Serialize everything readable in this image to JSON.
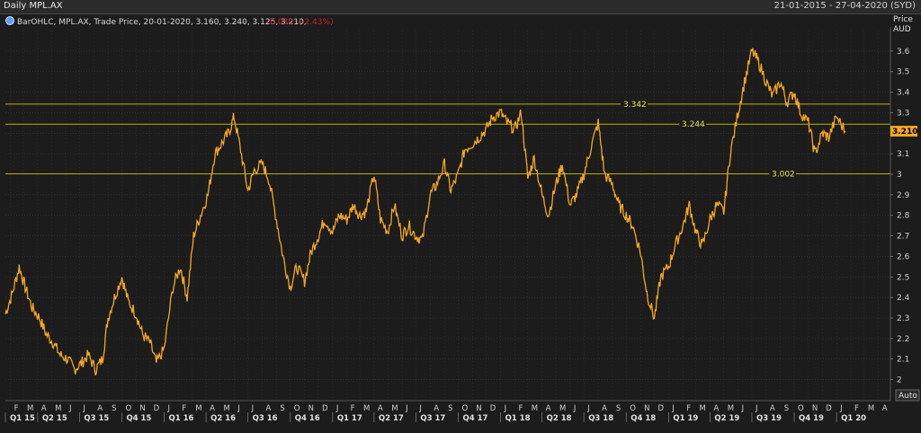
{
  "window": {
    "title": "Daily MPL.AX",
    "date_range": "21-01-2015 - 27-04-2020 (SYD)"
  },
  "legend": {
    "text": "BarOHLC, MPL.AX, Trade Price, 20-01-2020, 3.160, 3.240, 3.125, 3.210,",
    "change": "-0.080, (-2.43%)",
    "change_color": "#cc2222"
  },
  "colors": {
    "background": "#1c1c1c",
    "price_line": "#f5a623",
    "level_line": "#b5b200",
    "grid": "#3a3a3a"
  },
  "axis": {
    "unit_label": "Price",
    "currency_label": "AUD",
    "auto_button": "Auto"
  },
  "chart_data": {
    "type": "line",
    "ylim": [
      1.95,
      3.7
    ],
    "yticks": [
      2,
      2.1,
      2.2,
      2.3,
      2.4,
      2.5,
      2.6,
      2.7,
      2.8,
      2.9,
      3,
      3.1,
      3.2,
      3.3,
      3.4,
      3.5,
      3.6
    ],
    "ytick_labels": [
      "2",
      "2.1",
      "2.2",
      "2.3",
      "2.4",
      "2.5",
      "2.6",
      "2.7",
      "2.8",
      "2.9",
      "3",
      "3.1",
      "3.2",
      "3.3",
      "3.4",
      "3.5",
      "3.6"
    ],
    "xlim": [
      "2015-01-21",
      "2020-04-27"
    ],
    "month_labels": [
      "F",
      "M",
      "A",
      "M",
      "J",
      "J",
      "A",
      "S",
      "O",
      "N",
      "D",
      "J",
      "F",
      "M",
      "A",
      "M",
      "J",
      "J",
      "A",
      "S",
      "O",
      "N",
      "D",
      "J",
      "F",
      "M",
      "A",
      "M",
      "J",
      "J",
      "A",
      "S",
      "O",
      "N",
      "D",
      "J",
      "F",
      "M",
      "A",
      "M",
      "J",
      "J",
      "A",
      "S",
      "O",
      "N",
      "D",
      "J",
      "F",
      "M",
      "A",
      "M",
      "J",
      "J",
      "A",
      "S",
      "O",
      "N",
      "D",
      "J",
      "F",
      "M",
      "A"
    ],
    "month_dates": [
      "2015-02-01",
      "2015-03-01",
      "2015-04-01",
      "2015-05-01",
      "2015-06-01",
      "2015-07-01",
      "2015-08-01",
      "2015-09-01",
      "2015-10-01",
      "2015-11-01",
      "2015-12-01",
      "2016-01-01",
      "2016-02-01",
      "2016-03-01",
      "2016-04-01",
      "2016-05-01",
      "2016-06-01",
      "2016-07-01",
      "2016-08-01",
      "2016-09-01",
      "2016-10-01",
      "2016-11-01",
      "2016-12-01",
      "2017-01-01",
      "2017-02-01",
      "2017-03-01",
      "2017-04-01",
      "2017-05-01",
      "2017-06-01",
      "2017-07-01",
      "2017-08-01",
      "2017-09-01",
      "2017-10-01",
      "2017-11-01",
      "2017-12-01",
      "2018-01-01",
      "2018-02-01",
      "2018-03-01",
      "2018-04-01",
      "2018-05-01",
      "2018-06-01",
      "2018-07-01",
      "2018-08-01",
      "2018-09-01",
      "2018-10-01",
      "2018-11-01",
      "2018-12-01",
      "2019-01-01",
      "2019-02-01",
      "2019-03-01",
      "2019-04-01",
      "2019-05-01",
      "2019-06-01",
      "2019-07-01",
      "2019-08-01",
      "2019-09-01",
      "2019-10-01",
      "2019-11-01",
      "2019-12-01",
      "2020-01-01",
      "2020-02-01",
      "2020-03-01",
      "2020-04-01"
    ],
    "quarter_labels": [
      "Q1 15",
      "Q2 15",
      "Q3 15",
      "Q4 15",
      "Q1 16",
      "Q2 16",
      "Q3 16",
      "Q4 16",
      "Q1 17",
      "Q2 17",
      "Q3 17",
      "Q4 17",
      "Q1 18",
      "Q2 18",
      "Q3 18",
      "Q4 18",
      "Q1 19",
      "Q2 19",
      "Q3 19",
      "Q4 19",
      "Q1 20"
    ],
    "quarter_dates": [
      "2015-01-01",
      "2015-04-01",
      "2015-07-01",
      "2015-10-01",
      "2016-01-01",
      "2016-04-01",
      "2016-07-01",
      "2016-10-01",
      "2017-01-01",
      "2017-04-01",
      "2017-07-01",
      "2017-10-01",
      "2018-01-01",
      "2018-04-01",
      "2018-07-01",
      "2018-10-01",
      "2019-01-01",
      "2019-04-01",
      "2019-07-01",
      "2019-10-01",
      "2020-01-01"
    ],
    "horizontal_levels": [
      {
        "value": 3.342,
        "label": "3.342"
      },
      {
        "value": 3.244,
        "label": "3.244"
      },
      {
        "value": 3.002,
        "label": "3.002"
      }
    ],
    "last_price": {
      "value": 3.21,
      "label": "3.210"
    },
    "series": [
      {
        "x": [
          "2015-01-21",
          "2015-02-05",
          "2015-02-20",
          "2015-03-05",
          "2015-03-20",
          "2015-04-05",
          "2015-04-20",
          "2015-05-05",
          "2015-05-20",
          "2015-06-05",
          "2015-06-20",
          "2015-07-05",
          "2015-07-20",
          "2015-08-05",
          "2015-08-20",
          "2015-09-01",
          "2015-09-15",
          "2015-10-01",
          "2015-10-15",
          "2015-11-01",
          "2015-11-15",
          "2015-12-01",
          "2015-12-15",
          "2016-01-01",
          "2016-01-20",
          "2016-02-05",
          "2016-02-20",
          "2016-03-05",
          "2016-03-20",
          "2016-04-05",
          "2016-04-20",
          "2016-05-05",
          "2016-05-20",
          "2016-06-01",
          "2016-06-15",
          "2016-07-01",
          "2016-07-15",
          "2016-08-01",
          "2016-08-15",
          "2016-09-01",
          "2016-09-15",
          "2016-10-01",
          "2016-10-15",
          "2016-11-01",
          "2016-11-15",
          "2016-12-01",
          "2016-12-15",
          "2017-01-01",
          "2017-01-15",
          "2017-02-01",
          "2017-02-15",
          "2017-03-01",
          "2017-03-15",
          "2017-04-01",
          "2017-04-15",
          "2017-05-01",
          "2017-05-15",
          "2017-06-01",
          "2017-06-15",
          "2017-07-01",
          "2017-07-15",
          "2017-08-01",
          "2017-08-15",
          "2017-09-01",
          "2017-09-15",
          "2017-10-01",
          "2017-10-15",
          "2017-11-01",
          "2017-11-15",
          "2017-12-01",
          "2017-12-15",
          "2018-01-01",
          "2018-01-15",
          "2018-02-01",
          "2018-02-15",
          "2018-03-01",
          "2018-03-15",
          "2018-04-01",
          "2018-04-15",
          "2018-05-01",
          "2018-05-15",
          "2018-06-01",
          "2018-06-15",
          "2018-07-01",
          "2018-07-15",
          "2018-08-01",
          "2018-08-15",
          "2018-09-01",
          "2018-09-15",
          "2018-10-01",
          "2018-10-15",
          "2018-11-01",
          "2018-11-15",
          "2018-12-01",
          "2018-12-15",
          "2019-01-01",
          "2019-01-15",
          "2019-02-01",
          "2019-02-15",
          "2019-03-01",
          "2019-03-15",
          "2019-04-01",
          "2019-04-15",
          "2019-05-01",
          "2019-05-15",
          "2019-06-01",
          "2019-06-15",
          "2019-07-01",
          "2019-07-15",
          "2019-08-01",
          "2019-08-15",
          "2019-09-01",
          "2019-09-15",
          "2019-10-01",
          "2019-10-15",
          "2019-11-01",
          "2019-11-15",
          "2019-12-01",
          "2019-12-15",
          "2020-01-01",
          "2020-01-20"
        ],
        "values": [
          2.32,
          2.42,
          2.55,
          2.45,
          2.35,
          2.3,
          2.22,
          2.18,
          2.12,
          2.1,
          2.05,
          2.08,
          2.12,
          2.05,
          2.1,
          2.3,
          2.4,
          2.5,
          2.38,
          2.32,
          2.22,
          2.18,
          2.08,
          2.15,
          2.45,
          2.55,
          2.4,
          2.7,
          2.8,
          2.9,
          3.1,
          3.15,
          3.2,
          3.28,
          3.12,
          2.92,
          3.02,
          3.05,
          2.98,
          2.78,
          2.6,
          2.45,
          2.55,
          2.48,
          2.62,
          2.7,
          2.78,
          2.72,
          2.8,
          2.78,
          2.85,
          2.8,
          2.82,
          3.0,
          2.78,
          2.72,
          2.85,
          2.7,
          2.75,
          2.7,
          2.68,
          2.9,
          2.95,
          3.05,
          2.92,
          3.0,
          3.12,
          3.15,
          3.18,
          3.22,
          3.28,
          3.3,
          3.25,
          3.22,
          3.3,
          2.98,
          3.08,
          2.9,
          2.8,
          2.95,
          3.05,
          2.85,
          2.9,
          3.0,
          3.12,
          3.25,
          3.0,
          2.95,
          2.85,
          2.8,
          2.75,
          2.62,
          2.42,
          2.3,
          2.5,
          2.55,
          2.65,
          2.75,
          2.85,
          2.72,
          2.65,
          2.78,
          2.85,
          2.82,
          3.1,
          3.3,
          3.45,
          3.6,
          3.55,
          3.45,
          3.38,
          3.45,
          3.35,
          3.4,
          3.3,
          3.25,
          3.1,
          3.2,
          3.18,
          3.28,
          3.21
        ]
      }
    ]
  }
}
